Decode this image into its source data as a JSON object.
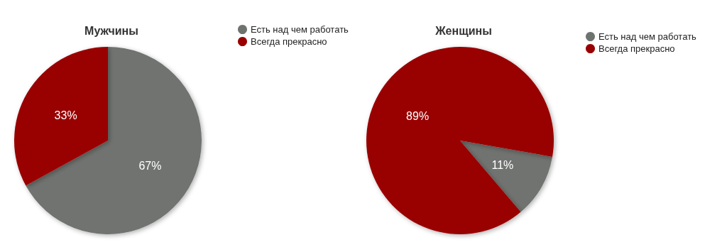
{
  "chart_data": [
    {
      "type": "pie",
      "title": "Мужчины",
      "categories": [
        "Есть над чем работать",
        "Всегда прекрасно"
      ],
      "values": [
        67,
        33
      ],
      "value_labels": [
        "67%",
        "33%"
      ],
      "colors": [
        "#6f7370",
        "#990000"
      ],
      "legend": "right"
    },
    {
      "type": "pie",
      "title": "Женщины",
      "categories": [
        "Есть над чем работать",
        "Всегда прекрасно"
      ],
      "values": [
        11,
        89
      ],
      "value_labels": [
        "11%",
        "89%"
      ],
      "colors": [
        "#6f7370",
        "#990000"
      ],
      "legend": "right"
    }
  ]
}
